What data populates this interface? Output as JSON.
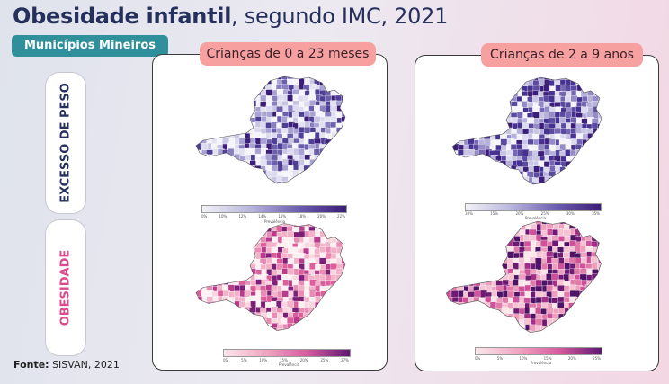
{
  "header": {
    "title_bold": "Obesidade infantil",
    "title_rest": ", segundo IMC, 2021"
  },
  "badge": "Municípios Mineiros",
  "row_labels": {
    "excess": "EXCESSO DE PESO",
    "obesity": "OBESIDADE"
  },
  "panels": [
    {
      "title": "Crianças de 0 a 23 meses",
      "excess_ticks": [
        "0%",
        "10%",
        "12%",
        "14%",
        "16%",
        "18%",
        "20%",
        "22%"
      ],
      "obesity_ticks": [
        "0%",
        "5%",
        "10%",
        "15%",
        "20%",
        "25%",
        "27%"
      ],
      "caption": "Prevalência"
    },
    {
      "title": "Crianças de 2 a 9 anos",
      "excess_ticks": [
        "10%",
        "15%",
        "20%",
        "25%",
        "30%",
        "35%"
      ],
      "obesity_ticks": [
        "0%",
        "5%",
        "10%",
        "15%",
        "20%",
        "25%"
      ],
      "caption": "Prevalência"
    }
  ],
  "source": {
    "label": "Fonte:",
    "text": " SISVAN, 2021"
  },
  "colors": {
    "blue_dark": "#3b1d7a",
    "blue_light": "#f2f2f8",
    "pink_dark": "#5e1772",
    "pink_light": "#fbe6ea",
    "accent": "#2f8f9a",
    "title_bg": "#f6a0a0"
  }
}
